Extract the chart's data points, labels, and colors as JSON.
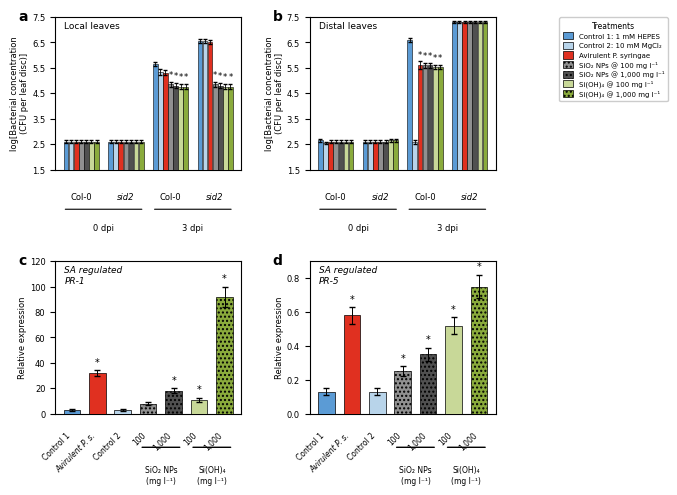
{
  "panel_a": {
    "title": "Local leaves",
    "ylabel": "log[Bacterial concentration\n(CFU per leaf disc)]",
    "ylim": [
      1.5,
      7.5
    ],
    "yticks": [
      1.5,
      2.5,
      3.5,
      4.5,
      5.5,
      6.5,
      7.5
    ],
    "values": [
      [
        2.6,
        2.6,
        5.65,
        6.55
      ],
      [
        2.6,
        2.6,
        5.35,
        6.55
      ],
      [
        2.6,
        2.6,
        5.3,
        6.5
      ],
      [
        2.6,
        2.6,
        4.85,
        4.85
      ],
      [
        2.6,
        2.6,
        4.8,
        4.8
      ],
      [
        2.6,
        2.6,
        4.75,
        4.75
      ],
      [
        2.6,
        2.6,
        4.75,
        4.75
      ]
    ],
    "errors": [
      [
        0.05,
        0.05,
        0.08,
        0.08
      ],
      [
        0.05,
        0.05,
        0.12,
        0.08
      ],
      [
        0.05,
        0.05,
        0.1,
        0.08
      ],
      [
        0.05,
        0.05,
        0.1,
        0.1
      ],
      [
        0.05,
        0.05,
        0.1,
        0.1
      ],
      [
        0.05,
        0.05,
        0.1,
        0.1
      ],
      [
        0.05,
        0.05,
        0.1,
        0.1
      ]
    ],
    "sig": [
      [
        false,
        false,
        false,
        false
      ],
      [
        false,
        false,
        false,
        false
      ],
      [
        false,
        false,
        false,
        false
      ],
      [
        false,
        false,
        true,
        true
      ],
      [
        false,
        false,
        true,
        true
      ],
      [
        false,
        false,
        true,
        true
      ],
      [
        false,
        false,
        true,
        true
      ]
    ]
  },
  "panel_b": {
    "title": "Distal leaves",
    "ylabel": "log[Bacterial concentration\n(CFU per leaf disc)]",
    "ylim": [
      1.5,
      7.5
    ],
    "yticks": [
      1.5,
      2.5,
      3.5,
      4.5,
      5.5,
      6.5,
      7.5
    ],
    "values": [
      [
        2.65,
        2.6,
        6.6,
        7.3
      ],
      [
        2.55,
        2.6,
        2.6,
        7.3
      ],
      [
        2.6,
        2.6,
        5.6,
        7.3
      ],
      [
        2.6,
        2.6,
        5.6,
        7.3
      ],
      [
        2.6,
        2.6,
        5.6,
        7.3
      ],
      [
        2.6,
        2.65,
        5.55,
        7.3
      ],
      [
        2.6,
        2.65,
        5.55,
        7.3
      ]
    ],
    "errors": [
      [
        0.05,
        0.05,
        0.08,
        0.05
      ],
      [
        0.05,
        0.05,
        0.08,
        0.05
      ],
      [
        0.05,
        0.05,
        0.15,
        0.05
      ],
      [
        0.05,
        0.05,
        0.1,
        0.05
      ],
      [
        0.05,
        0.05,
        0.1,
        0.05
      ],
      [
        0.05,
        0.05,
        0.08,
        0.05
      ],
      [
        0.05,
        0.05,
        0.08,
        0.05
      ]
    ],
    "sig": [
      [
        false,
        false,
        false,
        false
      ],
      [
        false,
        false,
        false,
        false
      ],
      [
        false,
        false,
        true,
        false
      ],
      [
        false,
        false,
        true,
        false
      ],
      [
        false,
        false,
        true,
        false
      ],
      [
        false,
        false,
        true,
        false
      ],
      [
        false,
        false,
        true,
        false
      ]
    ]
  },
  "panel_c": {
    "title": "SA regulated\nPR-1",
    "ylabel": "Relative expression",
    "ylim": [
      0,
      120
    ],
    "yticks": [
      0,
      20,
      40,
      60,
      80,
      100,
      120
    ],
    "labels": [
      "Control 1",
      "Avirulent P. s.",
      "Control 2",
      "100",
      "1,000",
      "100",
      "1,000"
    ],
    "values": [
      3.0,
      32.0,
      3.0,
      8.0,
      18.0,
      11.0,
      92.0
    ],
    "errors": [
      0.5,
      2.0,
      0.5,
      1.0,
      2.0,
      1.5,
      8.0
    ],
    "sig": [
      false,
      true,
      false,
      false,
      true,
      true,
      true
    ],
    "xlabel_groups": [
      "SiO₂ NPs\n(mg l⁻¹)",
      "Si(OH)₄\n(mg l⁻¹)"
    ]
  },
  "panel_d": {
    "title": "SA regulated\nPR-5",
    "ylabel": "Relative expression",
    "ylim": [
      0,
      0.9
    ],
    "yticks": [
      0,
      0.2,
      0.4,
      0.6,
      0.8
    ],
    "labels": [
      "Control 1",
      "Avirulent P. s.",
      "Control 2",
      "100",
      "1,000",
      "100",
      "1,000"
    ],
    "values": [
      0.13,
      0.58,
      0.13,
      0.25,
      0.35,
      0.52,
      0.75
    ],
    "errors": [
      0.02,
      0.05,
      0.02,
      0.03,
      0.04,
      0.05,
      0.07
    ],
    "sig": [
      false,
      true,
      false,
      true,
      true,
      true,
      true
    ],
    "xlabel_groups": [
      "SiO₂ NPs\n(mg l⁻¹)",
      "Si(OH)₄\n(mg l⁻¹)"
    ]
  },
  "colors": {
    "control1": "#5b9bd5",
    "control2": "#b8d4ea",
    "avirulent": "#e03020",
    "sio2_100": "#909090",
    "sio2_1000": "#505050",
    "sioh_100": "#c8d898",
    "sioh_1000": "#8aab3c"
  },
  "legend": {
    "labels": [
      "Control 1: 1 mM HEPES",
      "Control 2: 10 mM MgCl₂",
      "Avirulent P. syringae",
      "SiO₂ NPs @ 100 mg l⁻¹",
      "SiO₂ NPs @ 1,000 mg l⁻¹",
      "Si(OH)₄ @ 100 mg l⁻¹",
      "Si(OH)₄ @ 1,000 mg l⁻¹"
    ]
  }
}
